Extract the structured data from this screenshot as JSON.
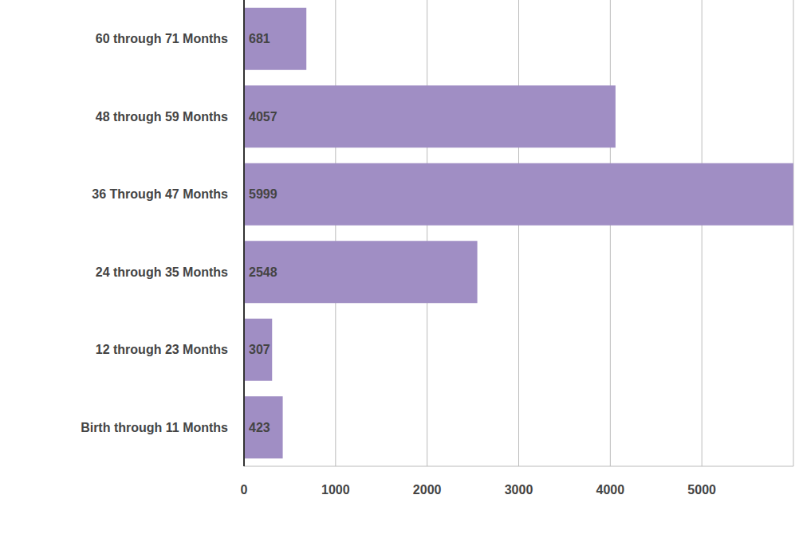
{
  "chart_data": {
    "type": "bar",
    "orientation": "horizontal",
    "categories": [
      "60 through 71 Months",
      "48 through 59 Months",
      "36 Through 47 Months",
      "24 through 35 Months",
      "12 through 23 Months",
      "Birth through 11 Months"
    ],
    "values": [
      681,
      4057,
      5999,
      2548,
      307,
      423
    ],
    "color": "#a08ec4",
    "xlim": [
      0,
      6000
    ],
    "xticks": [
      0,
      1000,
      2000,
      3000,
      4000,
      5000
    ],
    "grid": true,
    "data_labels": true
  }
}
